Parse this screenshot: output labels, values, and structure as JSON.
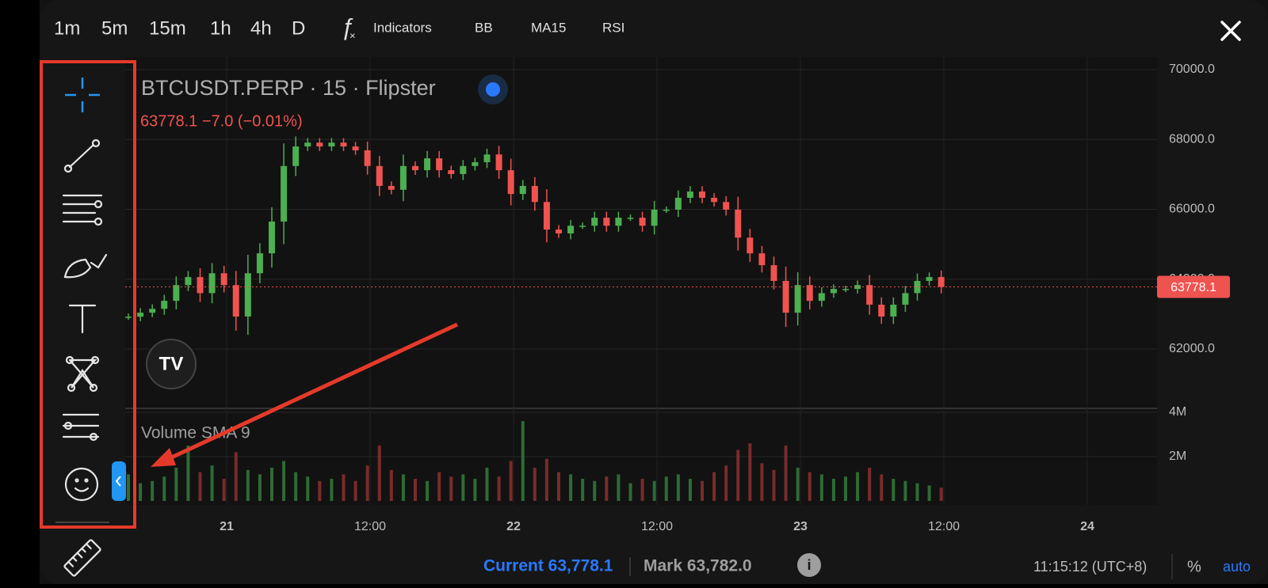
{
  "toolbar": {
    "intervals": [
      "1m",
      "5m",
      "15m",
      "1h",
      "4h",
      "D"
    ],
    "active_interval": 2,
    "indicators": "Indicators",
    "studies": [
      "BB",
      "MA15",
      "RSI"
    ]
  },
  "chart": {
    "title": "BTCUSDT.PERP · 15 · Flipster",
    "change": "63778.1  −7.0 (−0.01%)",
    "ylim": [
      61000,
      70000
    ],
    "yticks": [
      {
        "value": 70000,
        "label": "70000.0"
      },
      {
        "value": 68000,
        "label": "68000.0"
      },
      {
        "value": 66000,
        "label": "66000.0"
      },
      {
        "value": 64000,
        "label": "64000.0"
      },
      {
        "value": 62000,
        "label": "62000.0"
      }
    ],
    "last_price": 63778.1,
    "closes": [
      62925,
      63040,
      63150,
      63380,
      63830,
      64060,
      63600,
      64170,
      63830,
      62930,
      64170,
      64740,
      65650,
      67240,
      67800,
      67910,
      67800,
      67910,
      67800,
      67690,
      67240,
      66670,
      66560,
      67240,
      67120,
      67460,
      67120,
      67010,
      67240,
      67350,
      67570,
      67120,
      66440,
      66670,
      66210,
      65420,
      65310,
      65530,
      65530,
      65760,
      65530,
      65760,
      65760,
      65530,
      65990,
      65990,
      66330,
      66510,
      66330,
      66210,
      65990,
      65190,
      64740,
      64400,
      63950,
      63040,
      63830,
      63380,
      63600,
      63720,
      63720,
      63830,
      63270,
      62930,
      63270,
      63600,
      63950,
      64060,
      63778.1
    ],
    "volume_title": "Volume SMA 9",
    "volume_ylim": [
      0,
      5000000
    ],
    "volume_ticks": [
      {
        "value": 4000000,
        "label": "4M"
      },
      {
        "value": 2000000,
        "label": "2M"
      }
    ],
    "volumes": [
      1200000,
      800000,
      900000,
      1100000,
      1500000,
      2500000,
      1300000,
      1600000,
      1000000,
      2200000,
      1400000,
      1200000,
      1500000,
      1800000,
      1300000,
      1100000,
      900000,
      1000000,
      1200000,
      900000,
      1600000,
      2500000,
      1400000,
      1200000,
      1000000,
      900000,
      1300000,
      1100000,
      1200000,
      1000000,
      1500000,
      1100000,
      1800000,
      3600000,
      1500000,
      1900000,
      1300000,
      1200000,
      1000000,
      900000,
      1100000,
      1200000,
      800000,
      1000000,
      900000,
      1100000,
      1200000,
      1000000,
      900000,
      1300000,
      1600000,
      2300000,
      2600000,
      1700000,
      1400000,
      2500000,
      1500000,
      1300000,
      1200000,
      1000000,
      1100000,
      1300000,
      1500000,
      1200000,
      1000000,
      900000,
      800000,
      700000,
      600000
    ],
    "xlabels": [
      "21",
      "12:00",
      "22",
      "12:00",
      "23",
      "12:00",
      "24"
    ]
  },
  "footer": {
    "current": "Current 63,778.1",
    "mark": "Mark 63,782.0",
    "time": "11:15:12 (UTC+8)",
    "percent": "%",
    "auto": "auto"
  }
}
